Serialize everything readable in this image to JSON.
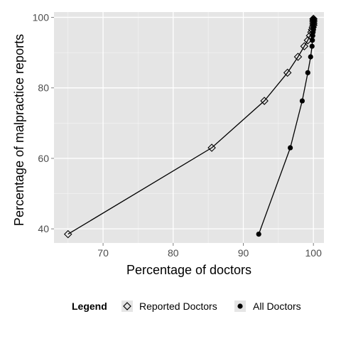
{
  "chart_data": {
    "type": "line",
    "title": "",
    "xlabel": "Percentage of doctors",
    "ylabel": "Percentage of malpractice reports",
    "xlim": [
      63,
      101.5
    ],
    "ylim": [
      36,
      101.5
    ],
    "x_ticks": [
      70,
      80,
      90,
      100
    ],
    "y_ticks": [
      40,
      60,
      80,
      100
    ],
    "x_tick_labels": [
      "70",
      "80",
      "90",
      "100"
    ],
    "y_tick_labels": [
      "40",
      "60",
      "80",
      "100"
    ],
    "grid": true,
    "panel_color": "#e5e5e5",
    "grid_color": "#ffffff",
    "legend": {
      "title": "Legend",
      "placement": "bottom",
      "entries": [
        {
          "label": "Reported Doctors",
          "marker": "diamond-open"
        },
        {
          "label": "All Doctors",
          "marker": "circle-filled"
        }
      ]
    },
    "series": [
      {
        "name": "Reported Doctors",
        "marker": "diamond-open",
        "color": "#000000",
        "points": [
          [
            65.0,
            38.5
          ],
          [
            85.5,
            63.0
          ],
          [
            93.0,
            76.3
          ],
          [
            96.3,
            84.3
          ],
          [
            97.8,
            88.8
          ],
          [
            98.7,
            91.8
          ],
          [
            99.2,
            93.5
          ],
          [
            99.5,
            94.8
          ],
          [
            99.7,
            95.8
          ],
          [
            99.8,
            96.5
          ],
          [
            99.9,
            97.2
          ],
          [
            100.0,
            97.8
          ],
          [
            100.0,
            98.3
          ],
          [
            100.0,
            98.8
          ],
          [
            100.0,
            99.2
          ],
          [
            100.0,
            99.6
          ]
        ]
      },
      {
        "name": "All Doctors",
        "marker": "circle-filled",
        "color": "#000000",
        "points": [
          [
            92.2,
            38.5
          ],
          [
            96.7,
            63.0
          ],
          [
            98.4,
            76.3
          ],
          [
            99.2,
            84.3
          ],
          [
            99.6,
            88.8
          ],
          [
            99.8,
            91.8
          ],
          [
            99.85,
            93.5
          ],
          [
            99.9,
            94.8
          ],
          [
            99.95,
            95.8
          ],
          [
            100.0,
            96.5
          ],
          [
            100.0,
            97.2
          ],
          [
            100.0,
            97.8
          ],
          [
            100.0,
            98.3
          ],
          [
            100.0,
            98.8
          ],
          [
            100.0,
            99.2
          ],
          [
            100.0,
            99.6
          ]
        ]
      }
    ]
  }
}
